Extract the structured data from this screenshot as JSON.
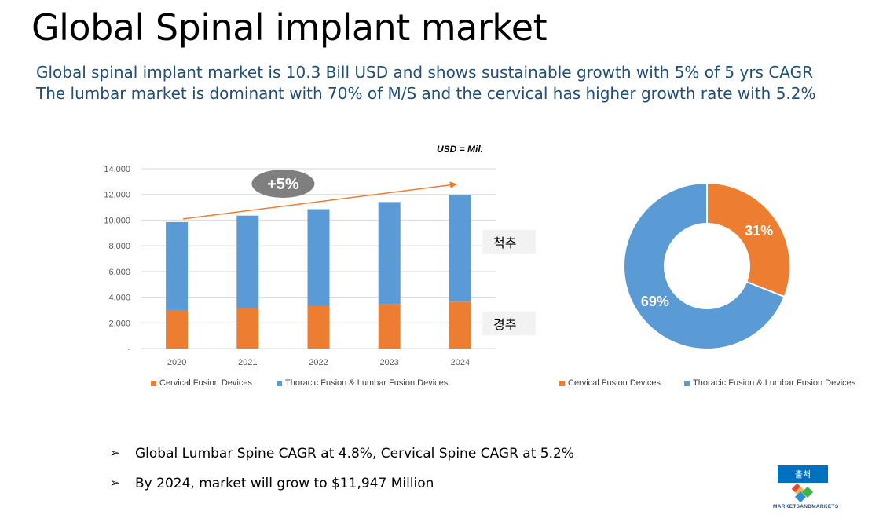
{
  "title": "Global Spinal implant market",
  "subtitle_1": "Global spinal implant market is 10.3 Bill USD and shows sustainable growth with 5% of 5 yrs CAGR",
  "subtitle_2": "The lumbar market is dominant with 70% of M/S and the cervical has higher growth rate with 5.2%",
  "colors": {
    "cervical": "#ED7D31",
    "lumbar": "#5B9BD5",
    "title_blue": "#1F4E79",
    "badge": "#7F7F7F"
  },
  "chart_data": [
    {
      "type": "bar",
      "stacked": true,
      "unit_note": "USD = Mil.",
      "categories": [
        "2020",
        "2021",
        "2022",
        "2023",
        "2024"
      ],
      "series": [
        {
          "name": "Cervical Fusion Devices",
          "values": [
            3000,
            3150,
            3300,
            3480,
            3650
          ]
        },
        {
          "name": "Thoracic Fusion & Lumbar Fusion Devices",
          "values": [
            6850,
            7200,
            7550,
            7930,
            8297
          ]
        }
      ],
      "ylim": [
        0,
        14000
      ],
      "yticks": [
        0,
        2000,
        4000,
        6000,
        8000,
        10000,
        12000,
        14000
      ],
      "ytick_labels": [
        "-",
        "2,000",
        "4,000",
        "6,000",
        "8,000",
        "10,000",
        "12,000",
        "14,000"
      ],
      "growth_badge": "+5%",
      "segment_labels": {
        "upper": "척추",
        "lower": "경추"
      },
      "grid": true,
      "legend": "bottom"
    },
    {
      "type": "pie",
      "donut": true,
      "labels": [
        "Cervical Fusion Devices",
        "Thoracic Fusion & Lumbar Fusion Devices"
      ],
      "values": [
        31,
        69
      ],
      "data_labels": [
        "31%",
        "69%"
      ],
      "legend": "bottom"
    }
  ],
  "bullets": [
    "Global Lumbar Spine CAGR at 4.8%,  Cervical Spine CAGR at 5.2%",
    "By 2024, market will grow to $11,947 Million"
  ],
  "bullet_marker": "➢",
  "source_label": "출처",
  "source_logo_text": "MARKETSANDMARKETS"
}
